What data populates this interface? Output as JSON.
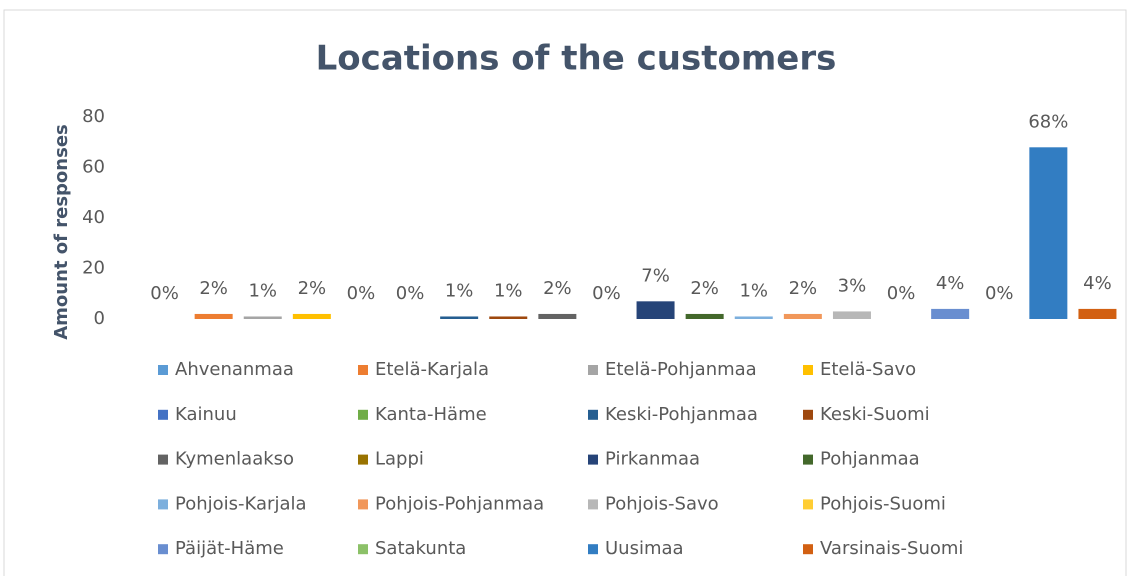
{
  "chart_data": {
    "type": "bar",
    "title": "Locations of the customers",
    "y_label": "Amount of responses",
    "ylim": [
      0,
      80
    ],
    "yticks": [
      0,
      20,
      40,
      60,
      80
    ],
    "grid": false,
    "legend": "bottom",
    "series": [
      {
        "name": "Ahvenanmaa",
        "color": "#5b9bd5",
        "values": [
          0
        ],
        "value_labels": [
          "0%"
        ]
      },
      {
        "name": "Etelä-Karjala",
        "color": "#ed7d31",
        "values": [
          2
        ],
        "value_labels": [
          "2%"
        ]
      },
      {
        "name": "Etelä-Pohjanmaa",
        "color": "#a5a5a5",
        "values": [
          1
        ],
        "value_labels": [
          "1%"
        ]
      },
      {
        "name": "Etelä-Savo",
        "color": "#ffc000",
        "values": [
          2
        ],
        "value_labels": [
          "2%"
        ]
      },
      {
        "name": "Kainuu",
        "color": "#4472c4",
        "values": [
          0
        ],
        "value_labels": [
          "0%"
        ]
      },
      {
        "name": "Kanta-Häme",
        "color": "#70ad47",
        "values": [
          0
        ],
        "value_labels": [
          "0%"
        ]
      },
      {
        "name": "Keski-Pohjanmaa",
        "color": "#255e91",
        "values": [
          1
        ],
        "value_labels": [
          "1%"
        ]
      },
      {
        "name": "Keski-Suomi",
        "color": "#9e480e",
        "values": [
          1
        ],
        "value_labels": [
          "1%"
        ]
      },
      {
        "name": "Kymenlaakso",
        "color": "#636363",
        "values": [
          2
        ],
        "value_labels": [
          "2%"
        ]
      },
      {
        "name": "Lappi",
        "color": "#997300",
        "values": [
          0
        ],
        "value_labels": [
          "0%"
        ]
      },
      {
        "name": "Pirkanmaa",
        "color": "#264478",
        "values": [
          7
        ],
        "value_labels": [
          "7%"
        ]
      },
      {
        "name": "Pohjanmaa",
        "color": "#43682b",
        "values": [
          2
        ],
        "value_labels": [
          "2%"
        ]
      },
      {
        "name": "Pohjois-Karjala",
        "color": "#7cafdd",
        "values": [
          1
        ],
        "value_labels": [
          "1%"
        ]
      },
      {
        "name": "Pohjois-Pohjanmaa",
        "color": "#f1975a",
        "values": [
          2
        ],
        "value_labels": [
          "2%"
        ]
      },
      {
        "name": "Pohjois-Savo",
        "color": "#b7b7b7",
        "values": [
          3
        ],
        "value_labels": [
          "3%"
        ]
      },
      {
        "name": "Pohjois-Suomi",
        "color": "#ffcd33",
        "values": [
          0
        ],
        "value_labels": [
          "0%"
        ]
      },
      {
        "name": "Päijät-Häme",
        "color": "#698ed0",
        "values": [
          4
        ],
        "value_labels": [
          "4%"
        ]
      },
      {
        "name": "Satakunta",
        "color": "#8cc168",
        "values": [
          0
        ],
        "value_labels": [
          "0%"
        ]
      },
      {
        "name": "Uusimaa",
        "color": "#327dc2",
        "values": [
          68
        ],
        "value_labels": [
          "68%"
        ]
      },
      {
        "name": "Varsinais-Suomi",
        "color": "#d26012",
        "values": [
          4
        ],
        "value_labels": [
          "4%"
        ]
      }
    ]
  }
}
